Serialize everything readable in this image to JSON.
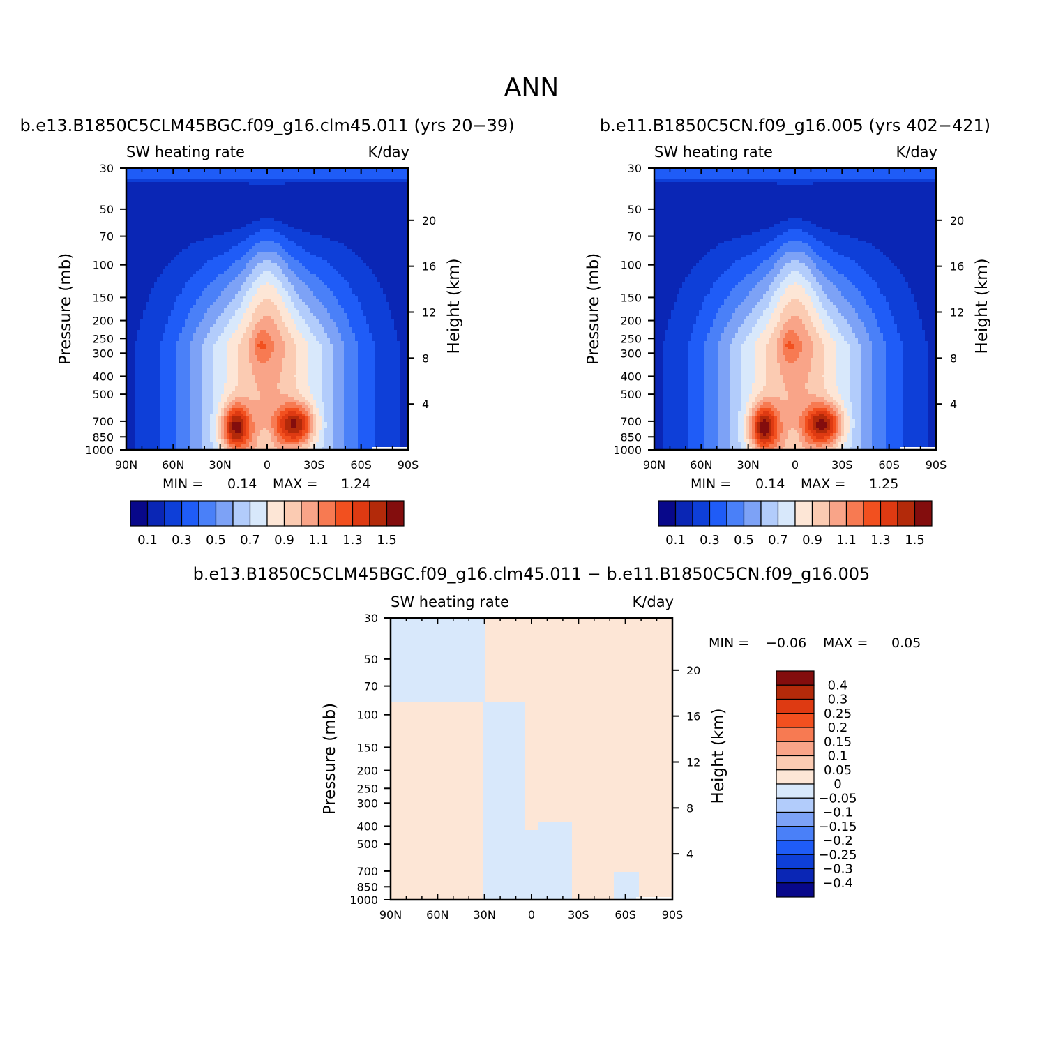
{
  "page": {
    "title": "ANN"
  },
  "colors": {
    "abs_palette": [
      "#08088a",
      "#0a26b5",
      "#0e3fd8",
      "#1f5cf7",
      "#4a80f8",
      "#7da2f6",
      "#b2ccfb",
      "#d8e8fb",
      "#fde6d6",
      "#fbcbb2",
      "#f9a488",
      "#f77a52",
      "#f2501f",
      "#de3a12",
      "#b32a0a",
      "#830d0d"
    ],
    "diff_palette": [
      "#08088a",
      "#0a26b5",
      "#0e3fd8",
      "#1f5cf7",
      "#4a80f8",
      "#7da2f6",
      "#b2ccfb",
      "#d8e8fb",
      "#fde6d6",
      "#fbcbb2",
      "#f9a488",
      "#f77a52",
      "#f2501f",
      "#de3a12",
      "#b32a0a",
      "#830d0d"
    ]
  },
  "chart_data": [
    {
      "id": "panel1",
      "type": "heatmap",
      "title": "b.e13.B1850C5CLM45BGC.f09_g16.clm45.011 (yrs 20-39)",
      "variable": "SW heating rate",
      "units": "K/day",
      "xlabel": "",
      "ylabel": "Pressure (mb)",
      "y2label": "Height (km)",
      "x_ticks": [
        "90N",
        "60N",
        "30N",
        "0",
        "30S",
        "60S",
        "90S"
      ],
      "y_ticks": [
        30,
        50,
        70,
        100,
        150,
        200,
        250,
        300,
        400,
        500,
        700,
        850,
        1000
      ],
      "y2_ticks": [
        20,
        16,
        12,
        8,
        4
      ],
      "min_label": "MIN =",
      "min_value": "0.14",
      "max_label": "MAX =",
      "max_value": "1.24",
      "colorbar_labels": [
        "0.1",
        "0.3",
        "0.5",
        "0.7",
        "0.9",
        "1.1",
        "1.3",
        "1.5"
      ],
      "max_core": 1.24
    },
    {
      "id": "panel2",
      "type": "heatmap",
      "title": "b.e11.B1850C5CN.f09_g16.005 (yrs 402-421)",
      "variable": "SW heating rate",
      "units": "K/day",
      "xlabel": "",
      "ylabel": "Pressure (mb)",
      "y2label": "Height (km)",
      "x_ticks": [
        "90N",
        "60N",
        "30N",
        "0",
        "30S",
        "60S",
        "90S"
      ],
      "y_ticks": [
        30,
        50,
        70,
        100,
        150,
        200,
        250,
        300,
        400,
        500,
        700,
        850,
        1000
      ],
      "y2_ticks": [
        20,
        16,
        12,
        8,
        4
      ],
      "min_label": "MIN =",
      "min_value": "0.14",
      "max_label": "MAX =",
      "max_value": "1.25",
      "colorbar_labels": [
        "0.1",
        "0.3",
        "0.5",
        "0.7",
        "0.9",
        "1.1",
        "1.3",
        "1.5"
      ],
      "max_core": 1.25
    },
    {
      "id": "panel3",
      "type": "heatmap",
      "title": "b.e13.B1850C5CLM45BGC.f09_g16.clm45.011 - b.e11.B1850C5CN.f09_g16.005",
      "variable": "SW heating rate",
      "units": "K/day",
      "xlabel": "",
      "ylabel": "Pressure (mb)",
      "y2label": "Height (km)",
      "x_ticks": [
        "90N",
        "60N",
        "30N",
        "0",
        "30S",
        "60S",
        "90S"
      ],
      "y_ticks": [
        30,
        50,
        70,
        100,
        150,
        200,
        250,
        300,
        400,
        500,
        700,
        850,
        1000
      ],
      "y2_ticks": [
        20,
        16,
        12,
        8,
        4
      ],
      "min_label": "MIN =",
      "min_value": "-0.06",
      "max_label": "MAX =",
      "max_value": "0.05",
      "colorbar_labels": [
        "0.4",
        "0.3",
        "0.25",
        "0.2",
        "0.15",
        "0.1",
        "0.05",
        "0",
        "-0.05",
        "-0.1",
        "-0.15",
        "-0.2",
        "-0.25",
        "-0.3",
        "-0.4"
      ]
    }
  ]
}
